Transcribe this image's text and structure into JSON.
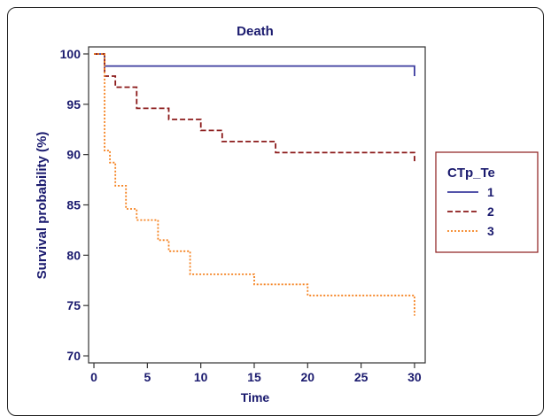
{
  "chart_data": {
    "type": "line",
    "step": true,
    "title": "Death",
    "xlabel": "Time",
    "ylabel": "Survival probability (%)",
    "xlim": [
      -0.5,
      31
    ],
    "ylim": [
      69.3,
      100.7
    ],
    "xticks": [
      0,
      5,
      10,
      15,
      20,
      25,
      30
    ],
    "yticks": [
      70,
      75,
      80,
      85,
      90,
      95,
      100
    ],
    "grid": false,
    "legend": {
      "title": "CTp_Te",
      "placement": "right"
    },
    "series": [
      {
        "name": "1",
        "color": "#3b3b9e",
        "dash": "solid",
        "points": [
          [
            0,
            100
          ],
          [
            1,
            100
          ],
          [
            1,
            98.8
          ],
          [
            30,
            98.8
          ],
          [
            30,
            97.8
          ]
        ]
      },
      {
        "name": "2",
        "color": "#8b1a1a",
        "dash": "dashed",
        "points": [
          [
            0,
            100
          ],
          [
            1,
            100
          ],
          [
            1,
            97.8
          ],
          [
            2,
            97.8
          ],
          [
            2,
            96.7
          ],
          [
            4,
            96.7
          ],
          [
            4,
            94.6
          ],
          [
            7,
            94.6
          ],
          [
            7,
            93.5
          ],
          [
            10,
            93.5
          ],
          [
            10,
            92.4
          ],
          [
            12,
            92.4
          ],
          [
            12,
            91.3
          ],
          [
            17,
            91.3
          ],
          [
            17,
            90.2
          ],
          [
            30,
            90.2
          ],
          [
            30,
            89.1
          ]
        ]
      },
      {
        "name": "3",
        "color": "#f58220",
        "dash": "dotted",
        "points": [
          [
            0,
            100
          ],
          [
            1,
            100
          ],
          [
            1,
            90.4
          ],
          [
            1.5,
            90.4
          ],
          [
            1.5,
            89.2
          ],
          [
            2,
            89.2
          ],
          [
            2,
            86.9
          ],
          [
            3,
            86.9
          ],
          [
            3,
            84.6
          ],
          [
            4,
            84.6
          ],
          [
            4,
            83.5
          ],
          [
            6,
            83.5
          ],
          [
            6,
            81.5
          ],
          [
            7,
            81.5
          ],
          [
            7,
            80.4
          ],
          [
            9,
            80.4
          ],
          [
            9,
            78.1
          ],
          [
            15,
            78.1
          ],
          [
            15,
            77.1
          ],
          [
            20,
            77.1
          ],
          [
            20,
            76.0
          ],
          [
            30,
            76.0
          ],
          [
            30,
            74.0
          ]
        ]
      }
    ]
  }
}
